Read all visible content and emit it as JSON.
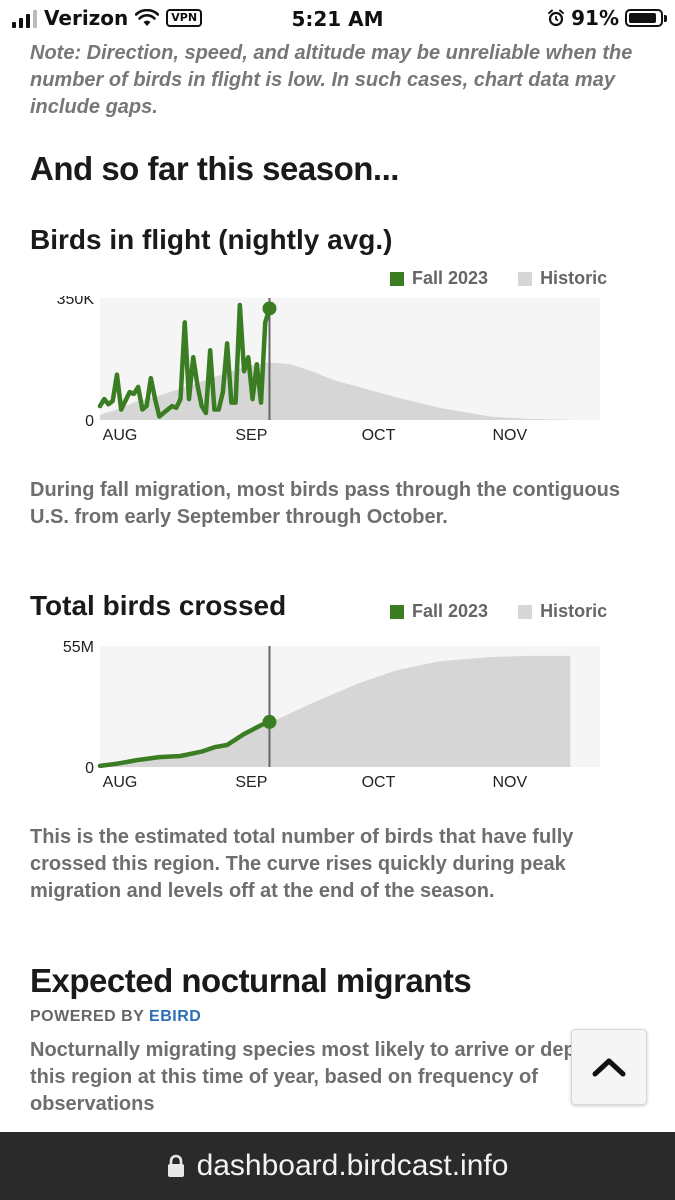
{
  "status_bar": {
    "carrier": "Verizon",
    "vpn": "VPN",
    "time": "5:21 AM",
    "battery_percent": "91%",
    "battery_level": 0.91
  },
  "note": "Note: Direction, speed, and altitude may be unreliable when the number of birds in flight is low. In such cases, chart data may include gaps.",
  "season_heading": "And so far this season...",
  "flight_section": {
    "title": "Birds in flight (nightly avg.)",
    "legend": [
      {
        "label": "Fall 2023",
        "color": "#3b7d23"
      },
      {
        "label": "Historic",
        "color": "#d6d6d6"
      }
    ],
    "description": "During fall migration, most birds pass through the contiguous U.S. from early September through October."
  },
  "crossed_section": {
    "title": "Total birds crossed",
    "legend": [
      {
        "label": "Fall 2023",
        "color": "#3b7d23"
      },
      {
        "label": "Historic",
        "color": "#d6d6d6"
      }
    ],
    "description": "This is the estimated total number of birds that have fully crossed this region. The curve rises quickly during peak migration and levels off at the end of the season."
  },
  "migrants_section": {
    "title": "Expected nocturnal migrants",
    "powered_by": "POWERED BY",
    "powered_link": "EBIRD",
    "description": "Nocturnally migrating species most likely to arrive or depart this region at this time of year, based on frequency of observations"
  },
  "scroll_top": {
    "icon": "chevron-up-icon"
  },
  "url_bar": {
    "url": "dashboard.birdcast.info",
    "icon": "lock-icon"
  },
  "chart_data": [
    {
      "type": "area",
      "x_ticks": [
        "AUG",
        "SEP",
        "OCT",
        "NOV"
      ],
      "y_ticks": [
        "350K",
        "0"
      ],
      "ylim": [
        0,
        350000
      ],
      "current_marker": "Sep 10",
      "series": [
        {
          "name": "Historic",
          "x": [
            "Aug 1",
            "Aug 5",
            "Aug 10",
            "Aug 15",
            "Aug 20",
            "Aug 25",
            "Sep 1",
            "Sep 5",
            "Sep 10",
            "Sep 15",
            "Sep 20",
            "Sep 25",
            "Oct 1",
            "Oct 10",
            "Oct 20",
            "Nov 1",
            "Nov 10",
            "Nov 20"
          ],
          "values": [
            15000,
            30000,
            55000,
            70000,
            90000,
            110000,
            140000,
            155000,
            165000,
            160000,
            140000,
            115000,
            95000,
            65000,
            35000,
            10000,
            3000,
            1000
          ]
        },
        {
          "name": "Fall 2023",
          "x": [
            "Aug 1",
            "Aug 2",
            "Aug 3",
            "Aug 4",
            "Aug 5",
            "Aug 6",
            "Aug 7",
            "Aug 8",
            "Aug 9",
            "Aug 10",
            "Aug 11",
            "Aug 12",
            "Aug 13",
            "Aug 14",
            "Aug 15",
            "Aug 16",
            "Aug 17",
            "Aug 18",
            "Aug 19",
            "Aug 20",
            "Aug 21",
            "Aug 22",
            "Aug 23",
            "Aug 24",
            "Aug 25",
            "Aug 26",
            "Aug 27",
            "Aug 28",
            "Aug 29",
            "Aug 30",
            "Aug 31",
            "Sep 1",
            "Sep 2",
            "Sep 3",
            "Sep 4",
            "Sep 5",
            "Sep 6",
            "Sep 7",
            "Sep 8",
            "Sep 9",
            "Sep 10"
          ],
          "values": [
            40000,
            60000,
            45000,
            55000,
            130000,
            30000,
            55000,
            80000,
            75000,
            95000,
            30000,
            40000,
            120000,
            60000,
            10000,
            20000,
            30000,
            40000,
            35000,
            60000,
            280000,
            60000,
            180000,
            100000,
            40000,
            20000,
            200000,
            30000,
            30000,
            80000,
            220000,
            50000,
            50000,
            330000,
            140000,
            180000,
            60000,
            160000,
            50000,
            280000,
            320000
          ]
        }
      ]
    },
    {
      "type": "area",
      "x_ticks": [
        "AUG",
        "SEP",
        "OCT",
        "NOV"
      ],
      "y_ticks": [
        "55M",
        "0"
      ],
      "ylim": [
        0,
        55000000
      ],
      "current_marker": "Sep 10",
      "series": [
        {
          "name": "Historic",
          "x": [
            "Aug 1",
            "Aug 10",
            "Aug 20",
            "Sep 1",
            "Sep 10",
            "Sep 20",
            "Oct 1",
            "Oct 10",
            "Oct 20",
            "Nov 1",
            "Nov 10",
            "Nov 20"
          ],
          "values": [
            300000,
            2000000,
            5000000,
            11000000,
            20000000,
            29000000,
            38000000,
            44000000,
            48000000,
            50000000,
            50500000,
            50500000
          ]
        },
        {
          "name": "Fall 2023",
          "x": [
            "Aug 1",
            "Aug 5",
            "Aug 10",
            "Aug 15",
            "Aug 20",
            "Aug 25",
            "Aug 28",
            "Aug 31",
            "Sep 2",
            "Sep 4",
            "Sep 6",
            "Sep 8",
            "Sep 10"
          ],
          "values": [
            500000,
            1500000,
            3200000,
            4500000,
            5000000,
            7000000,
            9000000,
            10000000,
            12500000,
            15000000,
            17000000,
            19000000,
            20500000
          ]
        }
      ]
    }
  ]
}
